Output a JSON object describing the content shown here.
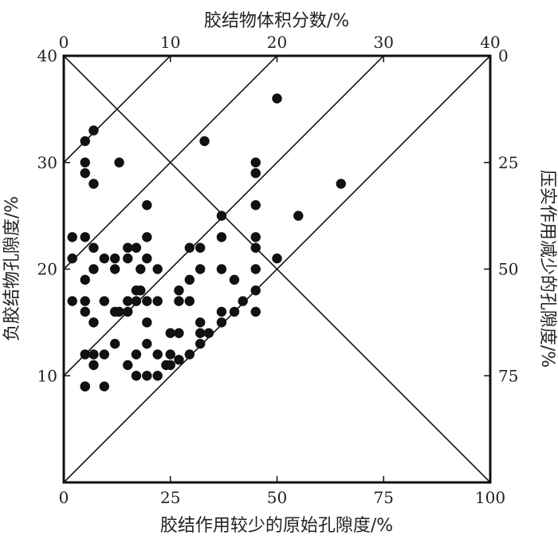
{
  "chart_data": {
    "type": "scatter",
    "title": "",
    "xlabel": "胶结作用较少的原始孔隙度/%",
    "ylabel": "负胶结物孔隙度/%",
    "top_label": "胶结物体积分数/%",
    "right_label": "压实作用减少的孔隙度/%",
    "xlim": [
      0,
      100
    ],
    "ylim": [
      0,
      40
    ],
    "x_ticks": [
      "0",
      "25",
      "50",
      "75",
      "100"
    ],
    "y_ticks": [
      "10",
      "20",
      "30",
      "40"
    ],
    "top_ticks": [
      "0",
      "10",
      "20",
      "30",
      "40"
    ],
    "right_ticks": [
      "0",
      "25",
      "50",
      "75"
    ],
    "grid": false,
    "reference_lines": {
      "cement_volume_lines": [
        0,
        10,
        20,
        30,
        40
      ],
      "compaction_diagonal": true
    },
    "x": [
      2,
      2,
      2,
      5,
      5,
      5,
      5,
      5,
      5,
      5,
      5,
      5,
      5,
      7,
      7,
      7,
      7,
      7,
      7,
      7,
      9.5,
      9.5,
      9.5,
      9.5,
      12,
      12,
      12,
      12,
      13,
      13,
      15,
      15,
      15,
      15,
      15,
      17,
      17,
      17,
      17,
      17,
      18,
      18,
      19.5,
      19.5,
      19.5,
      19.5,
      19.5,
      19.5,
      19.5,
      22,
      22,
      22,
      22,
      24,
      25,
      25,
      25,
      27,
      27,
      27,
      27,
      29.5,
      29.5,
      29.5,
      29.5,
      32,
      32,
      32,
      32,
      32,
      33,
      34,
      37,
      37,
      37,
      37,
      37,
      40,
      40,
      42,
      45,
      45,
      45,
      45,
      45,
      45,
      45,
      45,
      50,
      50,
      55,
      65
    ],
    "y": [
      23,
      21,
      17,
      32,
      30,
      29,
      23,
      19,
      17,
      16,
      12,
      9,
      9,
      33,
      28,
      22,
      20,
      15,
      12,
      11,
      21,
      17,
      12,
      9,
      21,
      20,
      16,
      13,
      30,
      16,
      22,
      21,
      17,
      16,
      11,
      22,
      18,
      17,
      12,
      10,
      20,
      18,
      26,
      23,
      21,
      17,
      15,
      13,
      10,
      17,
      20,
      12,
      10,
      11,
      14,
      12,
      11,
      18,
      17,
      14,
      11.5,
      22,
      19,
      17,
      12,
      22,
      20,
      15,
      13,
      14,
      32,
      14,
      25,
      23,
      16,
      15,
      20,
      19,
      16,
      17,
      30,
      29,
      26,
      23,
      22,
      20,
      18,
      16,
      36,
      21,
      25,
      28
    ]
  }
}
